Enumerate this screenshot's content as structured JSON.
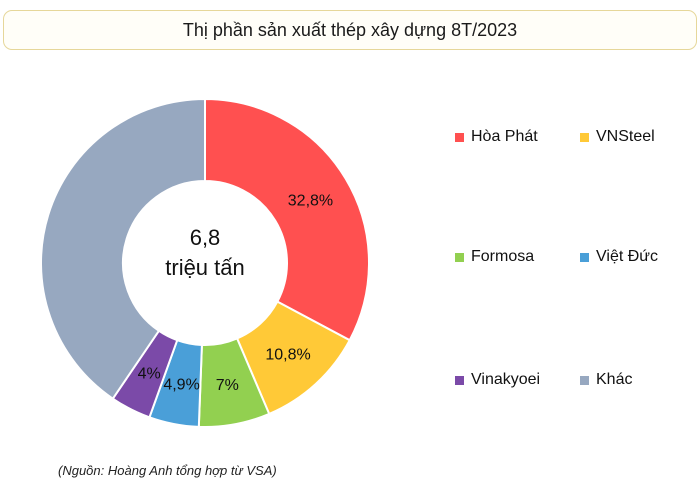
{
  "chart_data": {
    "type": "pie",
    "title": "Thị phần sản xuất thép xây dựng 8T/2023",
    "center_label": [
      "6,8",
      "triệu tấn"
    ],
    "categories": [
      "Hòa Phát",
      "VNSteel",
      "Formosa",
      "Việt Đức",
      "Vinakyoei",
      "Khác"
    ],
    "values": [
      32.8,
      10.8,
      7.0,
      4.9,
      4.0,
      40.5
    ],
    "value_labels": [
      "32,8%",
      "10,8%",
      "7%",
      "4,9%",
      "4%",
      ""
    ],
    "colors": [
      "#ff5050",
      "#ffc937",
      "#92d050",
      "#4a9fd8",
      "#7b4aa8",
      "#97a8c0"
    ],
    "legend_position": "right",
    "grid": false
  },
  "source_note": "(Nguồn: Hoàng Anh tổng hợp từ VSA)"
}
